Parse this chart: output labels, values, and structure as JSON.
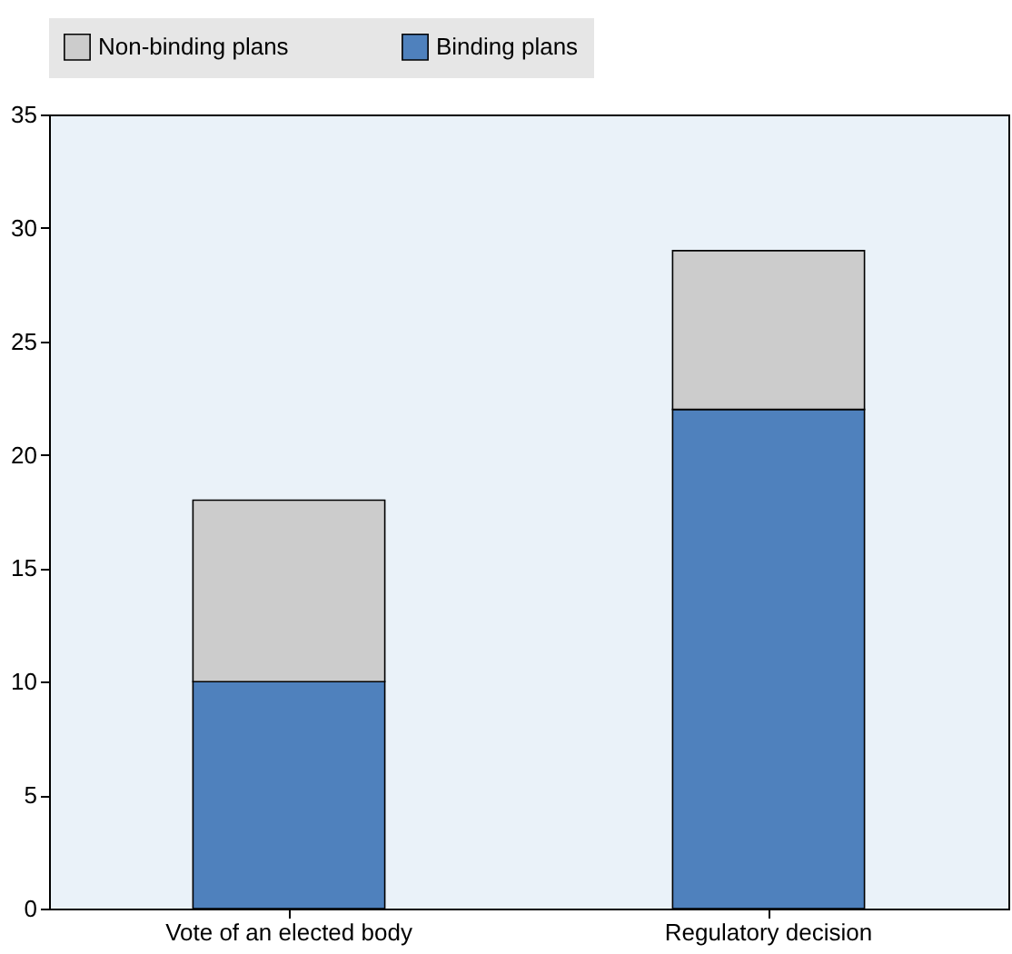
{
  "chart_data": {
    "type": "bar",
    "stacked": true,
    "categories": [
      "Vote of an elected body",
      "Regulatory decision"
    ],
    "series": [
      {
        "name": "Binding plans",
        "color": "#4f81bd",
        "values": [
          10,
          22
        ]
      },
      {
        "name": "Non-binding plans",
        "color": "#cccccc",
        "values": [
          8,
          7
        ]
      }
    ],
    "ylim": [
      0,
      35
    ],
    "yticks": [
      0,
      5,
      10,
      15,
      20,
      25,
      30,
      35
    ],
    "grid": false,
    "legend": "top"
  }
}
